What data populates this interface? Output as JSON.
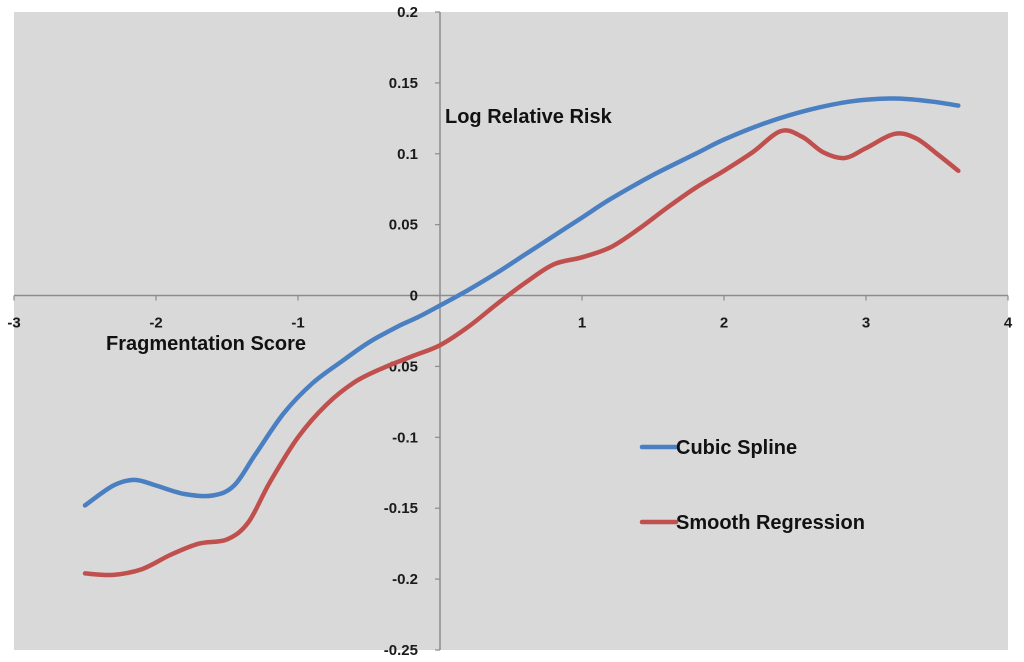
{
  "chart_data": {
    "type": "line",
    "title": "",
    "xlabel": "Fragmentation Score",
    "ylabel": "Log Relative Risk",
    "xlim": [
      -3,
      4
    ],
    "ylim": [
      -0.25,
      0.2
    ],
    "x_ticks": [
      -3,
      -2,
      -1,
      1,
      2,
      3,
      4
    ],
    "x_tick_labels": [
      "-3",
      "-2",
      "-1",
      "1",
      "2",
      "3",
      "4"
    ],
    "y_ticks": [
      0.2,
      0.15,
      0.1,
      0.05,
      0,
      -0.05,
      -0.1,
      -0.15,
      -0.2,
      -0.25
    ],
    "y_tick_labels": [
      "0.2",
      "0.15",
      "0.1",
      "0.05",
      "0",
      "-0.05",
      "-0.1",
      "-0.15",
      "-0.2",
      "-0.25"
    ],
    "grid": false,
    "legend_position": "right",
    "series": [
      {
        "name": "Cubic Spline",
        "color": "#4a7fc1",
        "x": [
          -2.5,
          -2.3,
          -2.15,
          -2.0,
          -1.8,
          -1.6,
          -1.45,
          -1.3,
          -1.1,
          -0.9,
          -0.7,
          -0.5,
          -0.3,
          -0.15,
          0.0,
          0.2,
          0.4,
          0.6,
          0.8,
          1.0,
          1.2,
          1.5,
          1.8,
          2.0,
          2.3,
          2.6,
          2.9,
          3.2,
          3.45,
          3.65
        ],
        "values": [
          -0.148,
          -0.134,
          -0.13,
          -0.134,
          -0.14,
          -0.141,
          -0.134,
          -0.112,
          -0.083,
          -0.062,
          -0.047,
          -0.033,
          -0.022,
          -0.015,
          -0.007,
          0.004,
          0.016,
          0.029,
          0.042,
          0.055,
          0.068,
          0.085,
          0.1,
          0.11,
          0.122,
          0.131,
          0.137,
          0.139,
          0.137,
          0.134
        ]
      },
      {
        "name": "Smooth Regression",
        "color": "#c0504d",
        "x": [
          -2.5,
          -2.3,
          -2.1,
          -1.9,
          -1.7,
          -1.5,
          -1.35,
          -1.2,
          -1.0,
          -0.8,
          -0.6,
          -0.4,
          -0.2,
          0.0,
          0.2,
          0.4,
          0.6,
          0.8,
          1.0,
          1.2,
          1.4,
          1.6,
          1.8,
          2.0,
          2.2,
          2.4,
          2.55,
          2.7,
          2.85,
          3.0,
          3.2,
          3.35,
          3.5,
          3.65
        ],
        "values": [
          -0.196,
          -0.197,
          -0.193,
          -0.183,
          -0.175,
          -0.172,
          -0.16,
          -0.132,
          -0.1,
          -0.077,
          -0.061,
          -0.051,
          -0.043,
          -0.035,
          -0.022,
          -0.006,
          0.009,
          0.022,
          0.027,
          0.034,
          0.047,
          0.062,
          0.076,
          0.088,
          0.101,
          0.116,
          0.112,
          0.101,
          0.097,
          0.104,
          0.114,
          0.111,
          0.1,
          0.088
        ]
      }
    ]
  }
}
